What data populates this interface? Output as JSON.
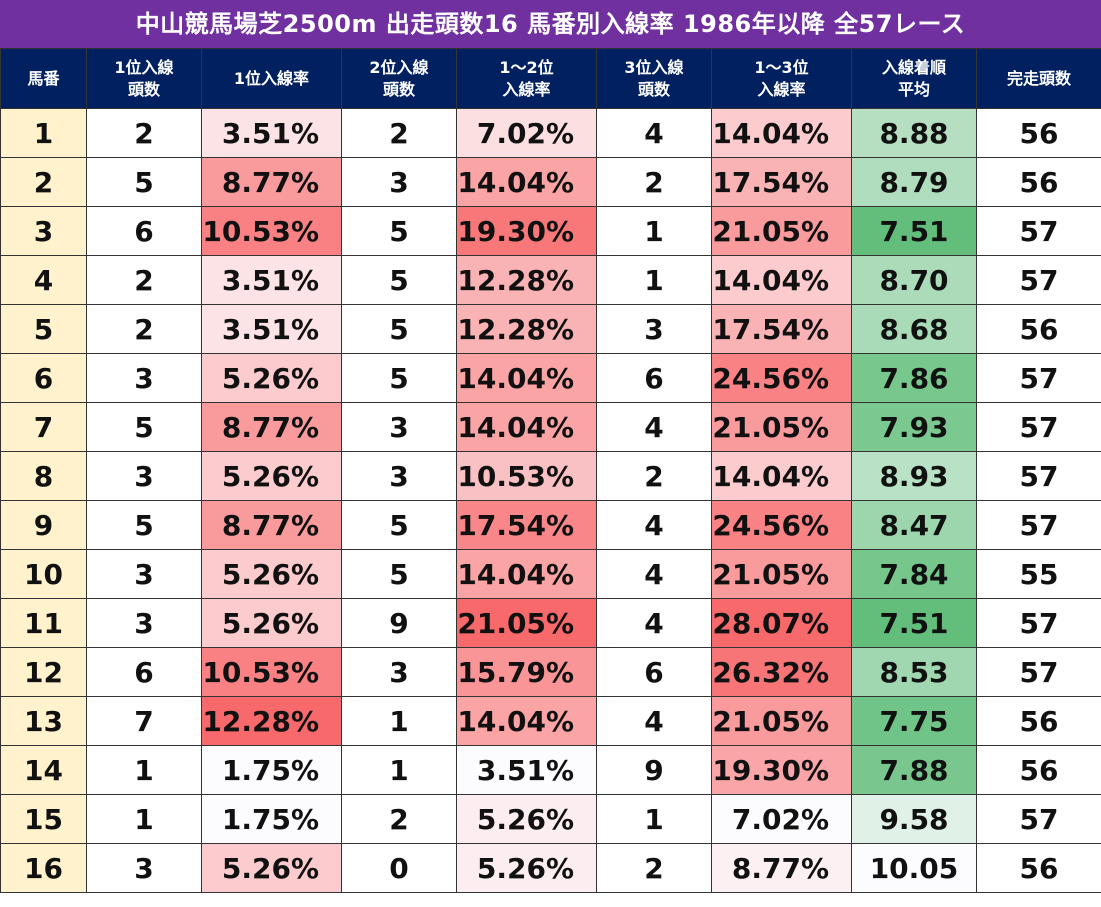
{
  "title": "中山競馬場芝2500m 出走頭数16 馬番別入線率 1986年以降 全57レース",
  "headers": [
    [
      "馬番"
    ],
    [
      "1位入線",
      "頭数"
    ],
    [
      "1位入線率"
    ],
    [
      "2位入線",
      "頭数"
    ],
    [
      "1～2位",
      "入線率"
    ],
    [
      "3位入線",
      "頭数"
    ],
    [
      "1～3位",
      "入線率"
    ],
    [
      "入線着順",
      "平均"
    ],
    [
      "完走頭数"
    ]
  ],
  "rows": [
    [
      "1",
      "2",
      "3.51%",
      "2",
      "7.02%",
      "4",
      "14.04%",
      "8.88",
      "56"
    ],
    [
      "2",
      "5",
      "8.77%",
      "3",
      "14.04%",
      "2",
      "17.54%",
      "8.79",
      "56"
    ],
    [
      "3",
      "6",
      "10.53%",
      "5",
      "19.30%",
      "1",
      "21.05%",
      "7.51",
      "57"
    ],
    [
      "4",
      "2",
      "3.51%",
      "5",
      "12.28%",
      "1",
      "14.04%",
      "8.70",
      "57"
    ],
    [
      "5",
      "2",
      "3.51%",
      "5",
      "12.28%",
      "3",
      "17.54%",
      "8.68",
      "56"
    ],
    [
      "6",
      "3",
      "5.26%",
      "5",
      "14.04%",
      "6",
      "24.56%",
      "7.86",
      "57"
    ],
    [
      "7",
      "5",
      "8.77%",
      "3",
      "14.04%",
      "4",
      "21.05%",
      "7.93",
      "57"
    ],
    [
      "8",
      "3",
      "5.26%",
      "3",
      "10.53%",
      "2",
      "14.04%",
      "8.93",
      "57"
    ],
    [
      "9",
      "5",
      "8.77%",
      "5",
      "17.54%",
      "4",
      "24.56%",
      "8.47",
      "57"
    ],
    [
      "10",
      "3",
      "5.26%",
      "5",
      "14.04%",
      "4",
      "21.05%",
      "7.84",
      "55"
    ],
    [
      "11",
      "3",
      "5.26%",
      "9",
      "21.05%",
      "4",
      "28.07%",
      "7.51",
      "57"
    ],
    [
      "12",
      "6",
      "10.53%",
      "3",
      "15.79%",
      "6",
      "26.32%",
      "8.53",
      "57"
    ],
    [
      "13",
      "7",
      "12.28%",
      "1",
      "14.04%",
      "4",
      "21.05%",
      "7.75",
      "56"
    ],
    [
      "14",
      "1",
      "1.75%",
      "1",
      "3.51%",
      "9",
      "19.30%",
      "7.88",
      "56"
    ],
    [
      "15",
      "1",
      "1.75%",
      "2",
      "5.26%",
      "1",
      "7.02%",
      "9.58",
      "57"
    ],
    [
      "16",
      "3",
      "5.26%",
      "0",
      "5.26%",
      "2",
      "8.77%",
      "10.05",
      "56"
    ]
  ],
  "colors": {
    "title_bg": "#7030a0",
    "header_bg": "#002060",
    "horse_number_bg": "#fff2cc",
    "high_red": "#f8696b",
    "low_white": "#fcfcff",
    "high_green": "#63be7b"
  }
}
